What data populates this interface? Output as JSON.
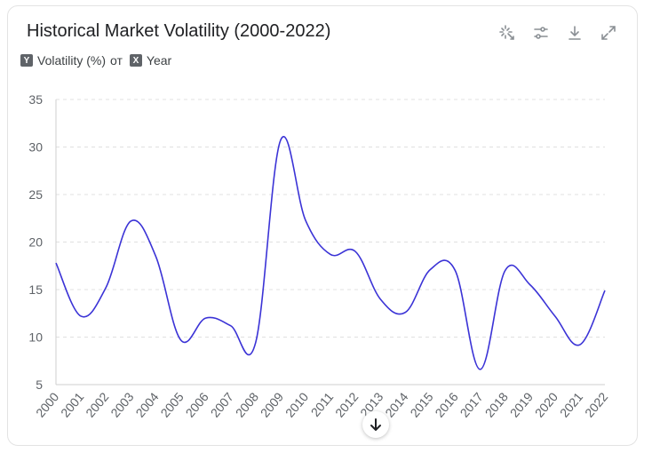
{
  "title": "Historical Market Volatility (2000-2022)",
  "legend": {
    "y_badge": "Y",
    "y_label": "Volatility (%)",
    "separator": "от",
    "x_badge": "X",
    "x_label": "Year"
  },
  "toolbar": {
    "icons": [
      "sparkle-icon",
      "sliders-icon",
      "download-icon",
      "expand-icon"
    ]
  },
  "colors": {
    "line": "#3b33d6",
    "grid": "#e0e0e0",
    "tick": "#5f6368"
  },
  "chart_data": {
    "type": "line",
    "categories": [
      "2000",
      "2001",
      "2002",
      "2003",
      "2004",
      "2005",
      "2006",
      "2007",
      "2008",
      "2009",
      "2010",
      "2011",
      "2012",
      "2013",
      "2014",
      "2015",
      "2016",
      "2017",
      "2018",
      "2019",
      "2020",
      "2021",
      "2022"
    ],
    "series": [
      {
        "values": [
          17.8,
          12.2,
          15.2,
          22.2,
          18.5,
          9.7,
          12.0,
          11.2,
          9.4,
          30.7,
          22.3,
          18.7,
          19.0,
          14.0,
          12.6,
          17.1,
          17.0,
          6.6,
          17.0,
          15.5,
          12.2,
          9.2,
          14.9
        ]
      }
    ],
    "ylim": [
      5,
      35
    ],
    "yticks": [
      5,
      10,
      15,
      20,
      25,
      30,
      35
    ],
    "grid": true,
    "smooth": true
  }
}
